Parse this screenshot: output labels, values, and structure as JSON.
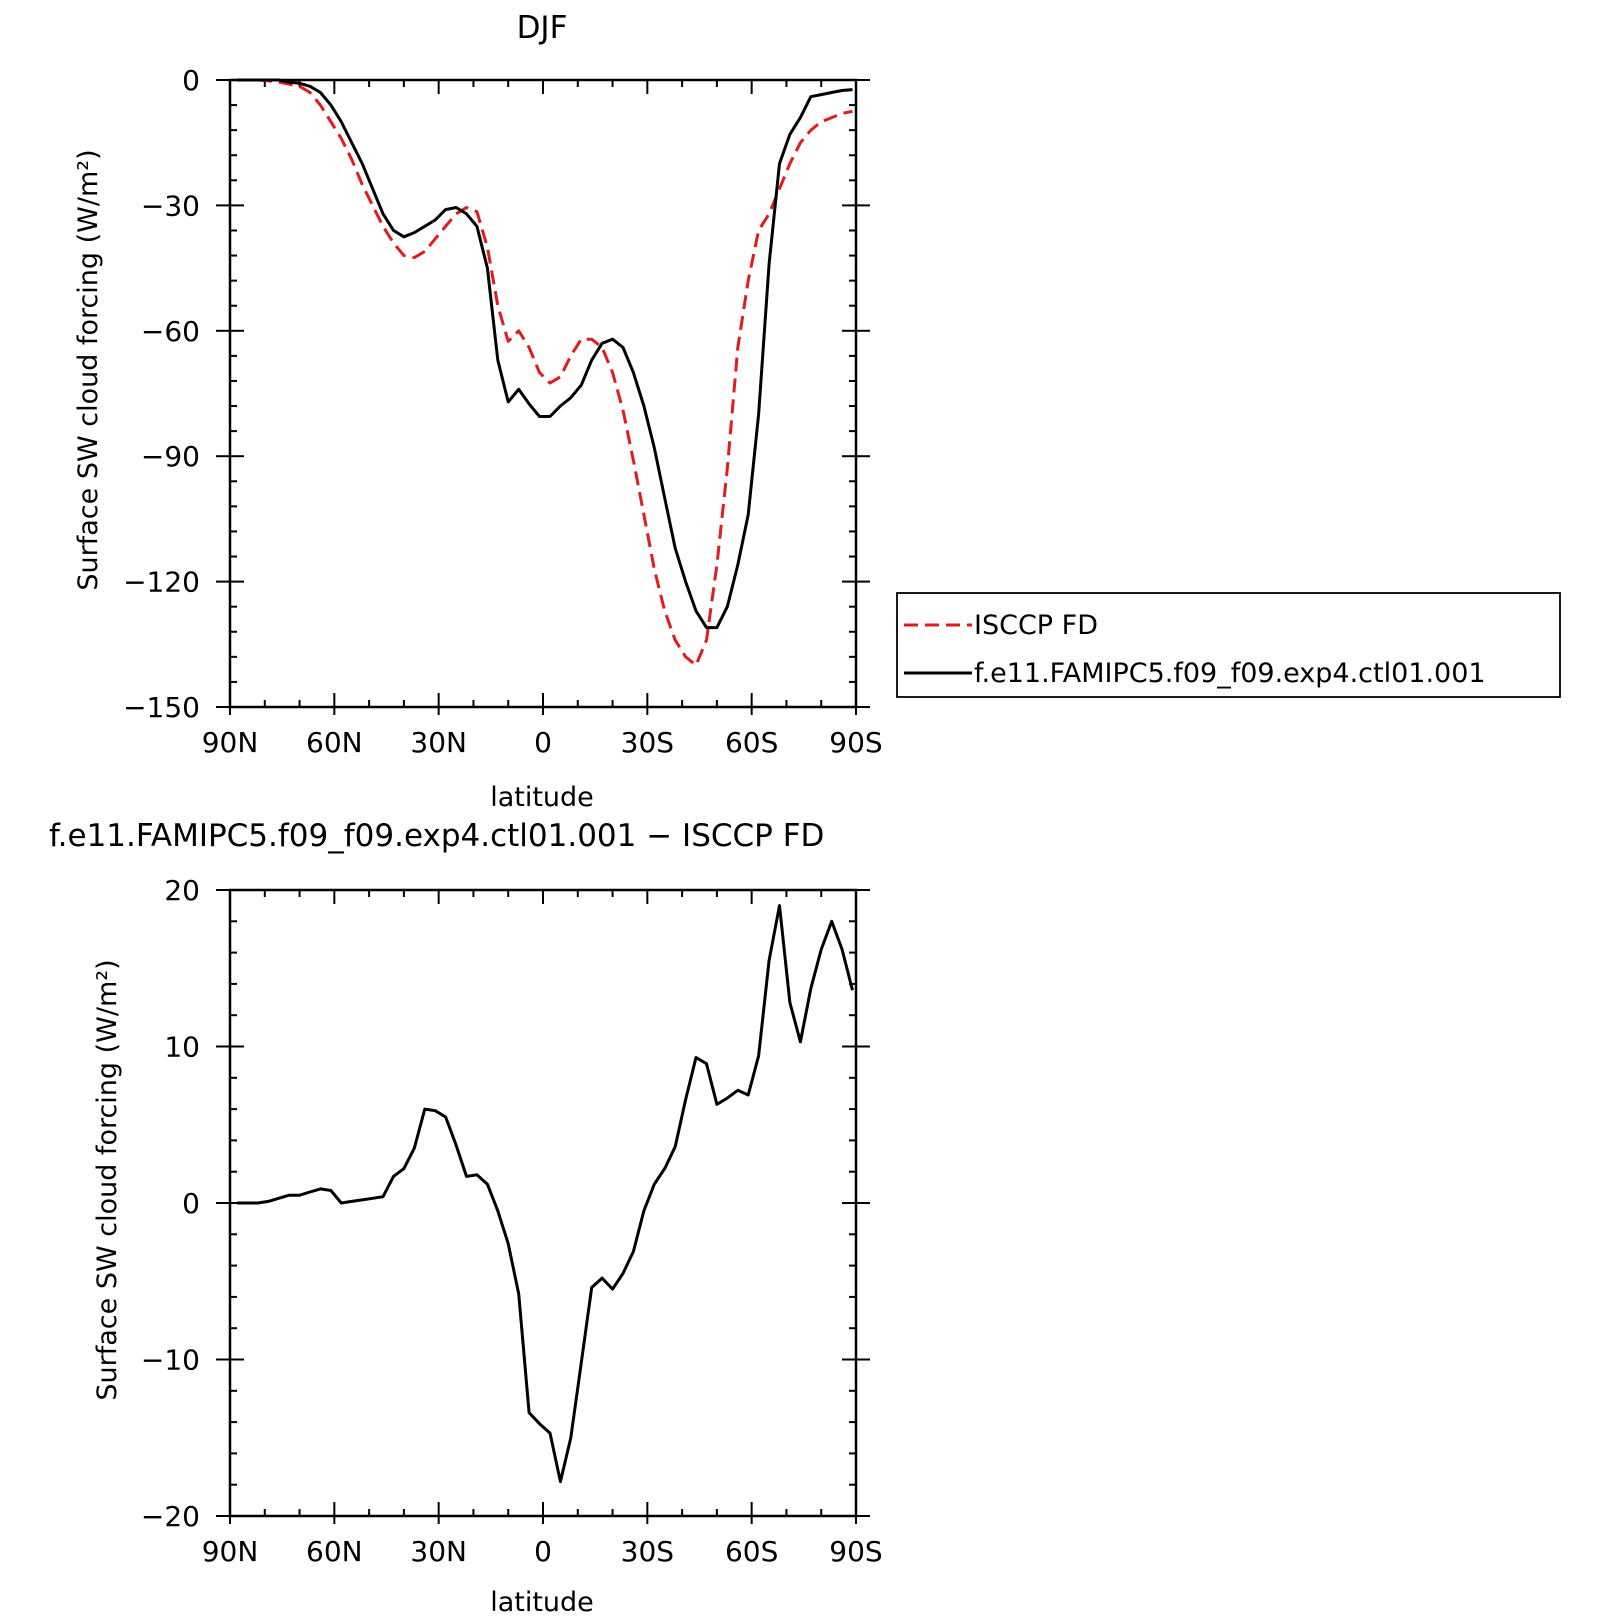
{
  "chart_data": [
    {
      "type": "line",
      "title": "DJF",
      "xlabel": "latitude",
      "ylabel": "Surface SW cloud forcing (W/m²)",
      "xlim": [
        90,
        -90
      ],
      "ylim": [
        -150,
        0
      ],
      "xticks": [
        90,
        60,
        30,
        0,
        -30,
        -60,
        -90
      ],
      "xtick_labels": [
        "90N",
        "60N",
        "30N",
        "0",
        "30S",
        "60S",
        "90S"
      ],
      "yticks": [
        0,
        -30,
        -60,
        -90,
        -120,
        -150
      ],
      "ytick_labels": [
        "0",
        "−30",
        "−60",
        "−90",
        "−120",
        "−150"
      ],
      "legend_position": "right",
      "series": [
        {
          "name": "ISCCP FD",
          "color": "#e41a1c",
          "dash": "dashed",
          "x": [
            88,
            85,
            82,
            79,
            76,
            73,
            70,
            67,
            64,
            61,
            58,
            55,
            52,
            49,
            46,
            43,
            40,
            37,
            34,
            31,
            28,
            25,
            22,
            19,
            16,
            13,
            10,
            7,
            4,
            1,
            -2,
            -5,
            -8,
            -11,
            -14,
            -17,
            -20,
            -23,
            -26,
            -29,
            -32,
            -35,
            -38,
            -41,
            -44,
            -47,
            -50,
            -53,
            -56,
            -59,
            -62,
            -65,
            -68,
            -71,
            -74,
            -77,
            -80,
            -83,
            -86,
            -89
          ],
          "y": [
            0,
            0,
            0,
            -0.2,
            -0.5,
            -1,
            -1.5,
            -3,
            -6,
            -10,
            -14,
            -19,
            -25,
            -30,
            -35,
            -39,
            -42,
            -42.5,
            -41,
            -38,
            -35,
            -32,
            -30.5,
            -31.5,
            -40,
            -54,
            -62.5,
            -60,
            -64,
            -70,
            -72.5,
            -71,
            -66,
            -62,
            -62,
            -64,
            -70,
            -79,
            -91,
            -104,
            -117,
            -127,
            -134,
            -138,
            -140,
            -134,
            -116,
            -93,
            -64,
            -48,
            -36,
            -32,
            -26,
            -20,
            -15,
            -12,
            -10,
            -9,
            -8,
            -7.5
          ]
        },
        {
          "name": "f.e11.FAMIPC5.f09_f09.exp4.ctl01.001",
          "color": "#000000",
          "dash": "solid",
          "x": [
            88,
            85,
            82,
            79,
            76,
            73,
            70,
            67,
            64,
            61,
            58,
            55,
            52,
            49,
            46,
            43,
            40,
            37,
            34,
            31,
            28,
            25,
            22,
            19,
            16,
            13,
            10,
            7,
            4,
            1,
            -2,
            -5,
            -8,
            -11,
            -14,
            -17,
            -20,
            -23,
            -26,
            -29,
            -32,
            -35,
            -38,
            -41,
            -44,
            -47,
            -50,
            -53,
            -56,
            -59,
            -62,
            -65,
            -68,
            -71,
            -74,
            -77,
            -80,
            -83,
            -86,
            -89
          ],
          "y": [
            0,
            0,
            0,
            0,
            0,
            -0.5,
            -0.8,
            -1.5,
            -3,
            -6,
            -10,
            -15,
            -20,
            -26,
            -32,
            -36,
            -37.5,
            -36.5,
            -35,
            -33.5,
            -31,
            -30.5,
            -32,
            -35,
            -45,
            -67,
            -77,
            -74,
            -77.5,
            -80.5,
            -80.5,
            -78,
            -76,
            -73,
            -67,
            -63,
            -62,
            -64,
            -70,
            -78,
            -88,
            -100,
            -112,
            -120,
            -127,
            -131,
            -131,
            -126,
            -116,
            -104,
            -80,
            -44,
            -20,
            -13,
            -9,
            -4,
            -3.5,
            -3,
            -2.5,
            -2.3
          ]
        }
      ]
    },
    {
      "type": "line",
      "title": "f.e11.FAMIPC5.f09_f09.exp4.ctl01.001 − ISCCP FD",
      "xlabel": "latitude",
      "ylabel": "Surface SW cloud forcing (W/m²)",
      "xlim": [
        90,
        -90
      ],
      "ylim": [
        -20,
        20
      ],
      "xticks": [
        90,
        60,
        30,
        0,
        -30,
        -60,
        -90
      ],
      "xtick_labels": [
        "90N",
        "60N",
        "30N",
        "0",
        "30S",
        "60S",
        "90S"
      ],
      "yticks": [
        20,
        10,
        0,
        -10,
        -20
      ],
      "ytick_labels": [
        "20",
        "10",
        "0",
        "−10",
        "−20"
      ],
      "series": [
        {
          "color": "#000000",
          "dash": "solid",
          "x": [
            88,
            85,
            82,
            79,
            76,
            73,
            70,
            67,
            64,
            61,
            58,
            55,
            52,
            49,
            46,
            43,
            40,
            37,
            34,
            31,
            28,
            25,
            22,
            19,
            16,
            13,
            10,
            7,
            4,
            1,
            -2,
            -5,
            -8,
            -11,
            -14,
            -17,
            -20,
            -23,
            -26,
            -29,
            -32,
            -35,
            -38,
            -41,
            -44,
            -47,
            -50,
            -53,
            -56,
            -59,
            -62,
            -65,
            -68,
            -71,
            -74,
            -77,
            -80,
            -83,
            -86,
            -89
          ],
          "y": [
            0,
            0,
            0,
            0.1,
            0.3,
            0.5,
            0.5,
            0.7,
            0.9,
            0.8,
            0,
            0.1,
            0.2,
            0.3,
            0.4,
            1.7,
            2.2,
            3.5,
            6,
            5.9,
            5.5,
            3.7,
            1.7,
            1.8,
            1.2,
            -0.5,
            -2.6,
            -5.8,
            -13.4,
            -14.1,
            -14.7,
            -17.8,
            -15,
            -10.2,
            -5.4,
            -4.8,
            -5.5,
            -4.5,
            -3.1,
            -0.5,
            1.2,
            2.2,
            3.6,
            6.6,
            9.3,
            8.9,
            6.3,
            6.7,
            7.2,
            6.9,
            9.4,
            15.5,
            19,
            12.8,
            10.3,
            13.7,
            16.2,
            18,
            16.2,
            13.6
          ]
        }
      ]
    }
  ]
}
